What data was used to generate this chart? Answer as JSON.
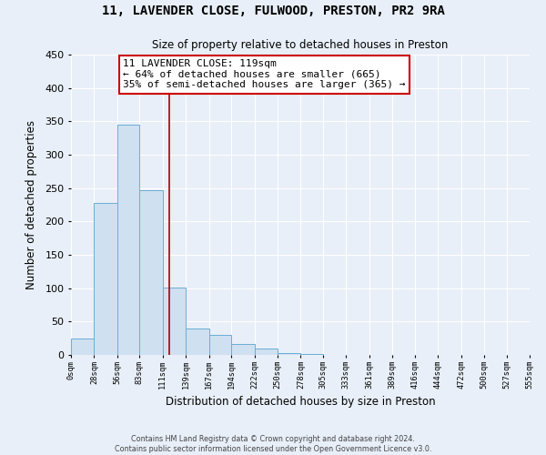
{
  "title": "11, LAVENDER CLOSE, FULWOOD, PRESTON, PR2 9RA",
  "subtitle": "Size of property relative to detached houses in Preston",
  "xlabel": "Distribution of detached houses by size in Preston",
  "ylabel": "Number of detached properties",
  "bin_edges": [
    0,
    28,
    56,
    83,
    111,
    139,
    167,
    194,
    222,
    250,
    278,
    305,
    333,
    361,
    389,
    416,
    444,
    472,
    500,
    527,
    555
  ],
  "bin_labels": [
    "0sqm",
    "28sqm",
    "56sqm",
    "83sqm",
    "111sqm",
    "139sqm",
    "167sqm",
    "194sqm",
    "222sqm",
    "250sqm",
    "278sqm",
    "305sqm",
    "333sqm",
    "361sqm",
    "389sqm",
    "416sqm",
    "444sqm",
    "472sqm",
    "500sqm",
    "527sqm",
    "555sqm"
  ],
  "counts": [
    25,
    228,
    345,
    247,
    101,
    40,
    30,
    16,
    10,
    3,
    1,
    0,
    0,
    0,
    0,
    0,
    0,
    0,
    0,
    0
  ],
  "bar_color": "#cfe0f0",
  "bar_edge_color": "#6aaed6",
  "property_line_x": 119,
  "property_line_color": "#aa0000",
  "annotation_title": "11 LAVENDER CLOSE: 119sqm",
  "annotation_line1": "← 64% of detached houses are smaller (665)",
  "annotation_line2": "35% of semi-detached houses are larger (365) →",
  "annotation_box_color": "#ffffff",
  "annotation_box_edge_color": "#cc0000",
  "ylim": [
    0,
    450
  ],
  "xlim": [
    0,
    555
  ],
  "yticks": [
    0,
    50,
    100,
    150,
    200,
    250,
    300,
    350,
    400,
    450
  ],
  "background_color": "#e8eff8",
  "grid_color": "#ffffff",
  "footer1": "Contains HM Land Registry data © Crown copyright and database right 2024.",
  "footer2": "Contains public sector information licensed under the Open Government Licence v3.0."
}
